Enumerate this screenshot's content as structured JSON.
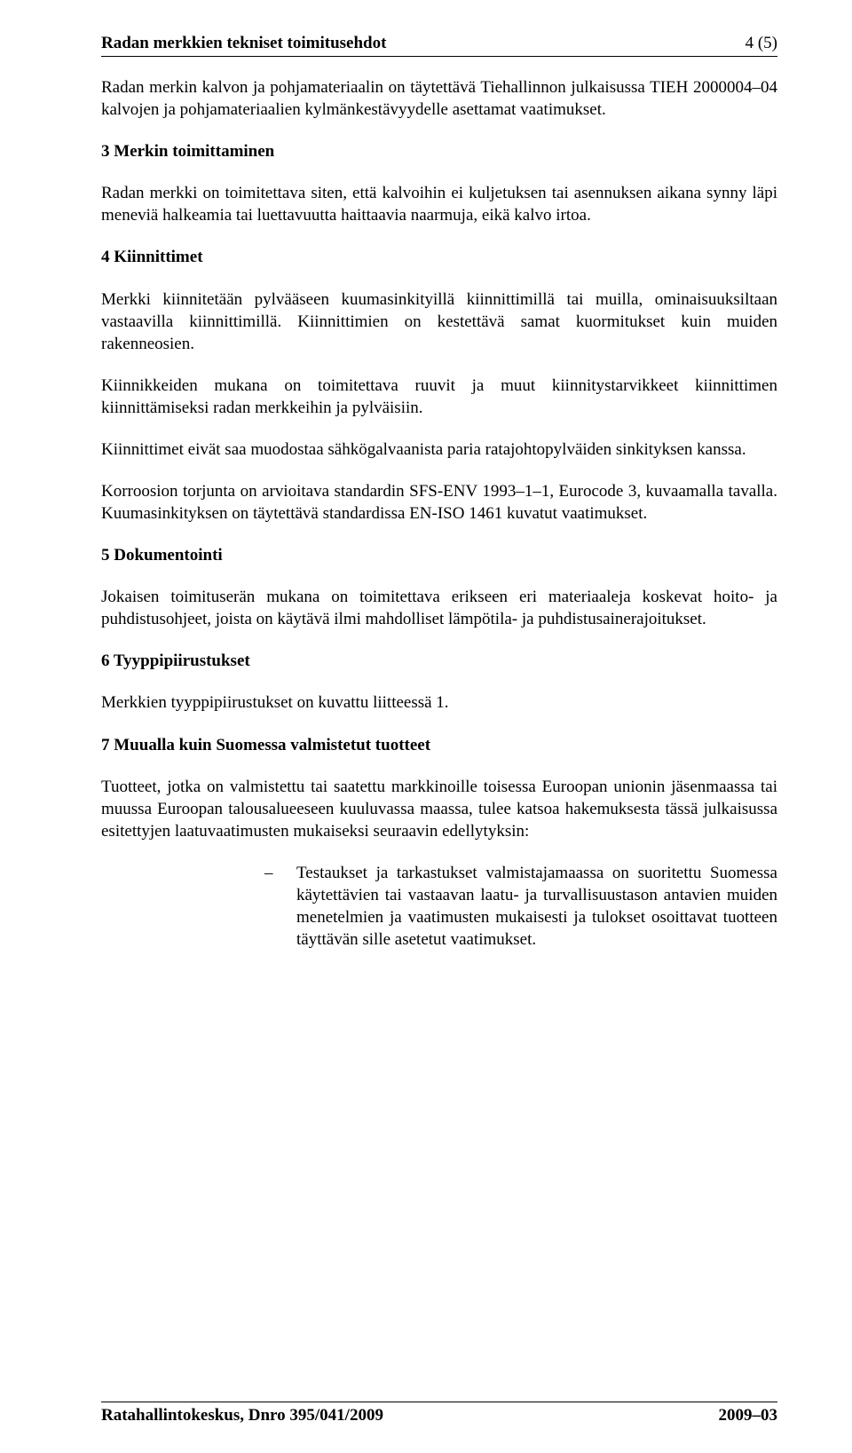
{
  "colors": {
    "text": "#000000",
    "background": "#ffffff",
    "rule": "#000000"
  },
  "typography": {
    "body_fontsize_pt": 14,
    "heading_weight": "bold",
    "font_family": "Times New Roman"
  },
  "header": {
    "left": "Radan merkkien tekniset toimitusehdot",
    "right": "4 (5)"
  },
  "intro_para": "Radan merkin kalvon ja pohjamateriaalin on täytettävä Tiehallinnon julkaisussa TIEH 2000004–04 kalvojen ja pohjamateriaalien kylmänkestävyydelle asettamat vaatimukset.",
  "sections": {
    "s3": {
      "heading": "3  Merkin toimittaminen",
      "p1": "Radan merkki on toimitettava siten, että kalvoihin ei kuljetuksen tai asennuksen aikana synny läpi meneviä halkeamia tai luettavuutta haittaavia naarmuja, eikä kalvo irtoa."
    },
    "s4": {
      "heading": "4  Kiinnittimet",
      "p1": "Merkki kiinnitetään pylvääseen kuumasinkityillä kiinnittimillä tai muilla, ominaisuuksiltaan vastaavilla kiinnittimillä. Kiinnittimien on kestettävä samat kuormitukset kuin muiden rakenneosien.",
      "p2": "Kiinnikkeiden mukana on toimitettava ruuvit ja muut kiinnitystarvikkeet kiinnittimen kiinnittämiseksi radan merkkeihin ja pylväisiin.",
      "p3": "Kiinnittimet eivät saa muodostaa sähkögalvaanista paria ratajohtopylväiden sinkityksen kanssa.",
      "p4": "Korroosion torjunta on arvioitava standardin SFS-ENV 1993–1–1, Eurocode 3, kuvaamalla tavalla. Kuumasinkityksen on täytettävä standardissa EN-ISO 1461 kuvatut vaatimukset."
    },
    "s5": {
      "heading": "5  Dokumentointi",
      "p1": "Jokaisen toimituserän mukana on toimitettava erikseen eri materiaaleja koskevat hoito- ja puhdistusohjeet, joista on käytävä ilmi mahdolliset lämpötila- ja puhdistusainerajoitukset."
    },
    "s6": {
      "heading": "6  Tyyppipiirustukset",
      "p1": "Merkkien tyyppipiirustukset on kuvattu liitteessä 1."
    },
    "s7": {
      "heading": "7  Muualla kuin Suomessa valmistetut tuotteet",
      "p1": "Tuotteet, jotka on valmistettu tai saatettu markkinoille toisessa Euroopan unionin jäsenmaassa tai muussa Euroopan talousalueeseen kuuluvassa maassa, tulee katsoa hakemuksesta tässä julkaisussa esitettyjen laatuvaatimusten mukaiseksi seuraavin edellytyksin:",
      "bullet_mark": "–",
      "bullet1": "Testaukset ja tarkastukset valmistajamaassa on suoritettu Suomessa käytettävien tai vastaavan laatu- ja turvallisuustason antavien muiden menetelmien ja vaatimusten mukaisesti ja tulokset osoittavat tuotteen täyttävän sille asetetut vaatimukset."
    }
  },
  "footer": {
    "left": "Ratahallintokeskus, Dnro 395/041/2009",
    "right": "2009–03"
  }
}
